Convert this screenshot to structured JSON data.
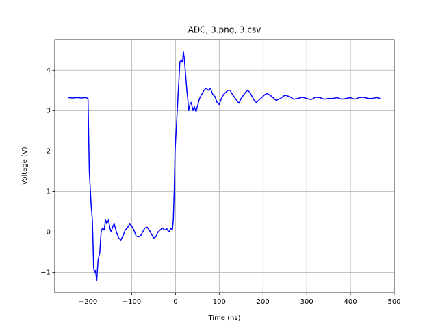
{
  "chart_data": {
    "type": "line",
    "title": "ADC, 3.png, 3.csv",
    "x_label": "Time (ns)",
    "y_label": "Voltage (V)",
    "color": "#0000ff",
    "grid": true,
    "xlim": [
      -276,
      500
    ],
    "ylim": [
      -1.5,
      4.75
    ],
    "xticks": [
      {
        "value": -200,
        "label": "−200"
      },
      {
        "value": -100,
        "label": "−100"
      },
      0,
      100,
      200,
      300,
      400,
      500
    ],
    "yticks": [
      {
        "value": -1,
        "label": "−1"
      },
      0,
      1,
      2,
      3,
      4
    ],
    "x": [
      -245,
      -235,
      -225,
      -215,
      -205,
      -200,
      -197,
      -193,
      -190,
      -187,
      -185,
      -183,
      -180,
      -177,
      -173,
      -170,
      -167,
      -163,
      -160,
      -157,
      -153,
      -150,
      -147,
      -143,
      -140,
      -135,
      -130,
      -125,
      -120,
      -115,
      -110,
      -105,
      -100,
      -95,
      -90,
      -85,
      -80,
      -75,
      -70,
      -65,
      -60,
      -55,
      -50,
      -45,
      -40,
      -35,
      -30,
      -25,
      -20,
      -15,
      -10,
      -7,
      -5,
      -3,
      -1,
      2,
      5,
      8,
      10,
      13,
      16,
      18,
      20,
      23,
      26,
      28,
      30,
      33,
      36,
      40,
      43,
      47,
      50,
      55,
      60,
      65,
      70,
      75,
      80,
      85,
      90,
      95,
      100,
      105,
      110,
      115,
      120,
      125,
      130,
      140,
      145,
      150,
      160,
      165,
      170,
      180,
      185,
      195,
      205,
      210,
      220,
      230,
      240,
      250,
      260,
      270,
      280,
      290,
      300,
      310,
      320,
      330,
      340,
      350,
      360,
      370,
      380,
      390,
      400,
      410,
      420,
      430,
      440,
      450,
      460,
      468
    ],
    "values": [
      3.32,
      3.31,
      3.32,
      3.31,
      3.32,
      3.3,
      1.5,
      0.7,
      0.3,
      -0.9,
      -1.0,
      -0.95,
      -1.2,
      -0.7,
      -0.5,
      0.0,
      0.1,
      0.05,
      0.3,
      0.2,
      0.3,
      0.1,
      0.0,
      0.15,
      0.2,
      0.0,
      -0.15,
      -0.2,
      -0.1,
      0.05,
      0.1,
      0.2,
      0.15,
      0.05,
      -0.1,
      -0.12,
      -0.1,
      0.0,
      0.1,
      0.12,
      0.05,
      -0.05,
      -0.15,
      -0.12,
      0.0,
      0.05,
      0.1,
      0.05,
      0.08,
      0.0,
      0.1,
      0.05,
      0.3,
      1.0,
      2.0,
      2.6,
      3.2,
      3.8,
      4.2,
      4.25,
      4.2,
      4.45,
      4.3,
      3.9,
      3.5,
      3.3,
      3.0,
      3.15,
      3.2,
      3.0,
      3.1,
      2.97,
      3.1,
      3.3,
      3.4,
      3.5,
      3.55,
      3.5,
      3.55,
      3.4,
      3.35,
      3.2,
      3.15,
      3.3,
      3.4,
      3.45,
      3.5,
      3.5,
      3.4,
      3.25,
      3.18,
      3.3,
      3.45,
      3.5,
      3.45,
      3.25,
      3.2,
      3.3,
      3.4,
      3.42,
      3.35,
      3.25,
      3.3,
      3.38,
      3.35,
      3.28,
      3.3,
      3.33,
      3.3,
      3.27,
      3.33,
      3.32,
      3.28,
      3.3,
      3.3,
      3.32,
      3.28,
      3.3,
      3.32,
      3.28,
      3.32,
      3.33,
      3.3,
      3.3,
      3.32,
      3.3
    ]
  }
}
